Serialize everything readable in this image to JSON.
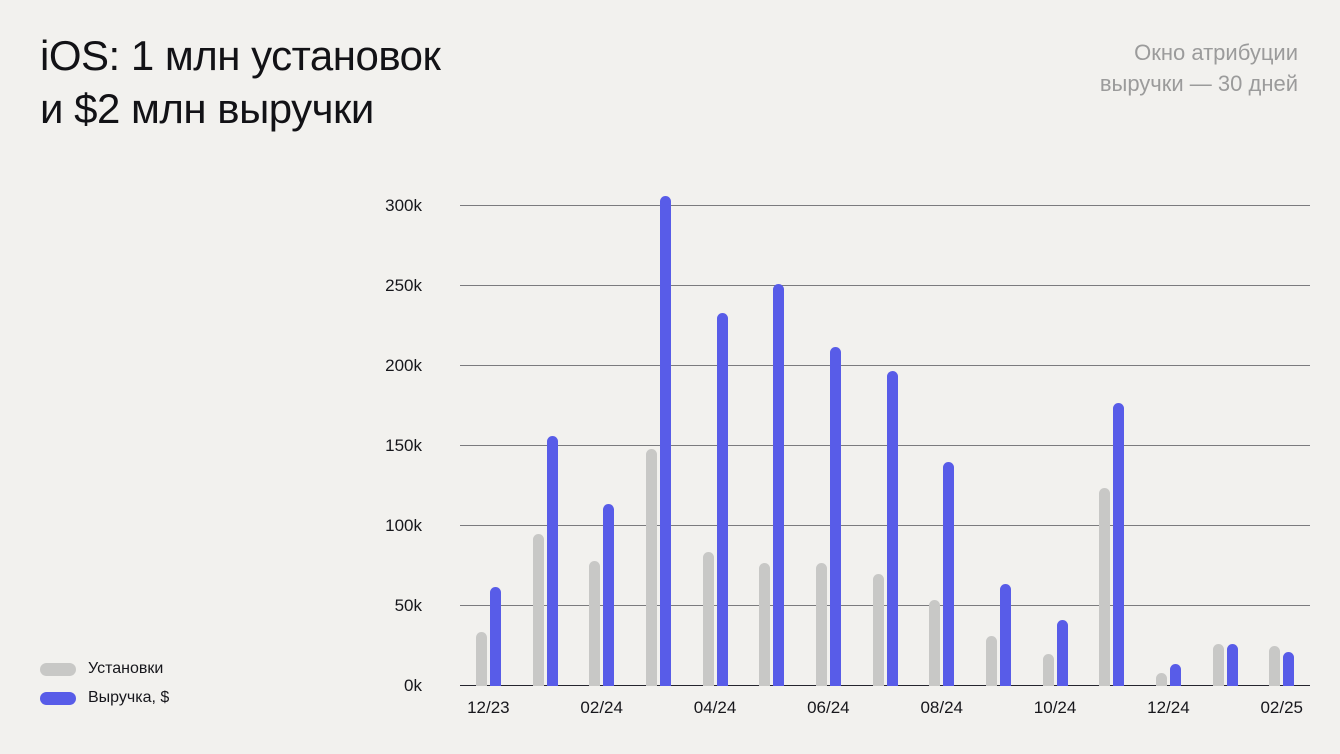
{
  "title": {
    "line1": "iOS: 1 млн установок",
    "line2": "и $2 млн выручки"
  },
  "note": {
    "line1": "Окно атрибуции",
    "line2": "выручки — 30 дней"
  },
  "legend": [
    {
      "label": "Установки",
      "color": "#c8c8c6"
    },
    {
      "label": "Выручка, $",
      "color": "#585ce8"
    }
  ],
  "chart_data": {
    "type": "bar",
    "title": "iOS: 1 млн установок и $2 млн выручки",
    "values_unit": "thousands",
    "categories": [
      "12/23",
      "01/24",
      "02/24",
      "03/24",
      "04/24",
      "05/24",
      "06/24",
      "07/24",
      "08/24",
      "09/24",
      "10/24",
      "11/24",
      "12/24",
      "01/25",
      "02/25"
    ],
    "x_tick_labels": [
      "12/23",
      "02/24",
      "04/24",
      "06/24",
      "08/24",
      "10/24",
      "12/24",
      "02/25"
    ],
    "series": [
      {
        "name": "Установки",
        "color": "#c8c8c6",
        "values": [
          34,
          95,
          78,
          148,
          84,
          77,
          77,
          70,
          54,
          31,
          20,
          124,
          8,
          26,
          25
        ]
      },
      {
        "name": "Выручка, $",
        "color": "#585ce8",
        "values": [
          62,
          156,
          114,
          306,
          233,
          251,
          212,
          197,
          140,
          64,
          41,
          177,
          14,
          26,
          21
        ]
      }
    ],
    "y_ticks": [
      "0k",
      "50k",
      "100k",
      "150k",
      "200k",
      "250k",
      "300k"
    ],
    "ylim": [
      0,
      300
    ],
    "xlabel": "",
    "ylabel": "",
    "grid": true,
    "legend_position": "bottom-left"
  }
}
